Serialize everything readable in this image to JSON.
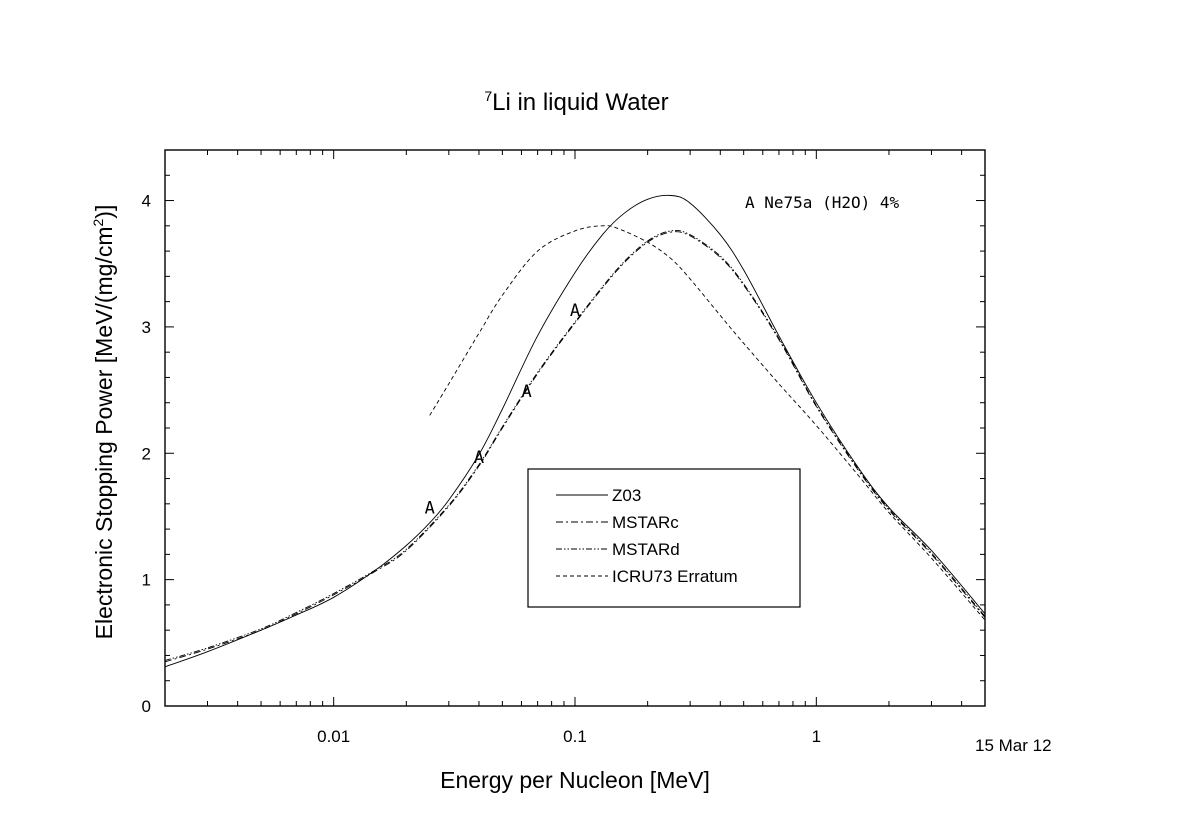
{
  "chart_data": {
    "type": "line",
    "title": {
      "sup": "7",
      "text": "Li in liquid Water"
    },
    "xlabel": "Energy per Nucleon [MeV]",
    "ylabel": "Electronic Stopping Power [MeV/(mg/cm",
    "ylabel_sup": "2",
    "ylabel_end": ")]",
    "x_scale": "log",
    "xlim": [
      0.002,
      5
    ],
    "ylim": [
      0,
      4.4
    ],
    "x_ticks": [
      {
        "v": 0.01,
        "label": "0.01"
      },
      {
        "v": 0.1,
        "label": "0.1"
      },
      {
        "v": 1,
        "label": "1"
      }
    ],
    "y_ticks": [
      {
        "v": 0,
        "label": "0"
      },
      {
        "v": 1,
        "label": "1"
      },
      {
        "v": 2,
        "label": "2"
      },
      {
        "v": 3,
        "label": "3"
      },
      {
        "v": 4,
        "label": "4"
      }
    ],
    "grid": false,
    "legend_position": "lower-right",
    "series": [
      {
        "name": "Z03",
        "dash": "solid",
        "x": [
          0.002,
          0.003,
          0.005,
          0.007,
          0.01,
          0.015,
          0.02,
          0.025,
          0.03,
          0.04,
          0.05,
          0.07,
          0.1,
          0.13,
          0.16,
          0.2,
          0.25,
          0.3,
          0.4,
          0.5,
          0.7,
          1,
          1.5,
          2,
          3,
          5
        ],
        "y": [
          0.31,
          0.43,
          0.6,
          0.72,
          0.86,
          1.08,
          1.27,
          1.45,
          1.63,
          1.99,
          2.35,
          2.93,
          3.43,
          3.73,
          3.9,
          4.01,
          4.04,
          3.98,
          3.73,
          3.45,
          2.93,
          2.4,
          1.88,
          1.57,
          1.23,
          0.73
        ]
      },
      {
        "name": "MSTARc",
        "dash": "dashdot",
        "x": [
          0.002,
          0.003,
          0.005,
          0.007,
          0.01,
          0.015,
          0.02,
          0.03,
          0.04,
          0.05,
          0.07,
          0.1,
          0.15,
          0.2,
          0.25,
          0.3,
          0.4,
          0.5,
          0.7,
          1,
          1.5,
          2,
          3,
          5
        ],
        "y": [
          0.35,
          0.45,
          0.6,
          0.73,
          0.88,
          1.07,
          1.23,
          1.58,
          1.9,
          2.2,
          2.63,
          3.03,
          3.45,
          3.67,
          3.75,
          3.72,
          3.55,
          3.33,
          2.9,
          2.37,
          1.86,
          1.55,
          1.2,
          0.7
        ]
      },
      {
        "name": "MSTARd",
        "dash": "dashdotdot",
        "x": [
          0.002,
          0.003,
          0.005,
          0.007,
          0.01,
          0.015,
          0.02,
          0.03,
          0.04,
          0.05,
          0.07,
          0.1,
          0.15,
          0.2,
          0.25,
          0.3,
          0.4,
          0.5,
          0.7,
          1,
          1.5,
          2,
          3,
          5
        ],
        "y": [
          0.36,
          0.46,
          0.61,
          0.74,
          0.89,
          1.08,
          1.24,
          1.59,
          1.91,
          2.21,
          2.64,
          3.04,
          3.46,
          3.68,
          3.76,
          3.73,
          3.56,
          3.34,
          2.91,
          2.38,
          1.87,
          1.56,
          1.21,
          0.71
        ]
      },
      {
        "name": "ICRU73 Erratum",
        "dash": "dashed",
        "x": [
          0.025,
          0.03,
          0.04,
          0.05,
          0.07,
          0.1,
          0.13,
          0.15,
          0.2,
          0.25,
          0.3,
          0.4,
          0.5,
          0.7,
          1,
          1.5,
          2,
          3,
          5
        ],
        "y": [
          2.3,
          2.55,
          2.95,
          3.25,
          3.6,
          3.76,
          3.8,
          3.78,
          3.67,
          3.54,
          3.38,
          3.09,
          2.87,
          2.55,
          2.22,
          1.82,
          1.53,
          1.17,
          0.68
        ]
      }
    ],
    "experimental": {
      "legend": "A Ne75a (H2O) 4%",
      "marker": "A",
      "x": [
        0.025,
        0.04,
        0.063,
        0.1
      ],
      "y": [
        1.58,
        1.98,
        2.5,
        3.14
      ]
    }
  },
  "date_stamp": "15 Mar 12"
}
